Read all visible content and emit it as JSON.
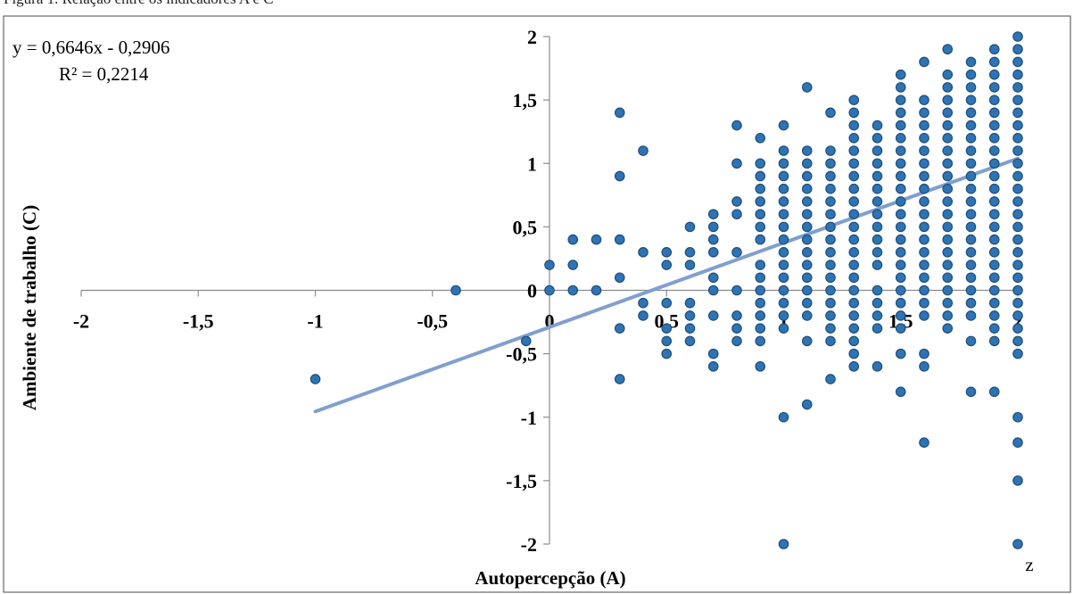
{
  "caption": "Figura 1. Relação entre os indicadores A e C",
  "chart_data": {
    "type": "scatter",
    "xlabel": "Autopercepção (A)",
    "ylabel": "Ambiente de trabalho (C)",
    "xlim": [
      -2,
      2
    ],
    "ylim": [
      -2,
      2
    ],
    "x_ticks": [
      "-2",
      "-1,5",
      "-1",
      "-0,5",
      "0",
      "0,5",
      "1",
      "1,5",
      "2"
    ],
    "y_ticks": [
      "2",
      "1,5",
      "1",
      "0,5",
      "0",
      "-0,5",
      "-1",
      "-1,5",
      "-2"
    ],
    "corner_label": "z",
    "trendline": {
      "equation": "y = 0,6646x - 0,2906",
      "r_squared": "R² = 0,2214",
      "slope": 0.6646,
      "intercept": -0.2906,
      "x_range": [
        -1,
        2
      ]
    },
    "marker_color": "#2e74b5",
    "marker_edge": "#1f4e79",
    "line_color": "#7f9fcf",
    "columns": [
      {
        "x": -1,
        "y": [
          -0.7
        ]
      },
      {
        "x": -0.4,
        "y": [
          0
        ]
      },
      {
        "x": -0.1,
        "y": [
          -0.4
        ]
      },
      {
        "x": 0,
        "y": [
          0.2,
          0
        ]
      },
      {
        "x": 0.1,
        "y": [
          0.4,
          0.2,
          0
        ]
      },
      {
        "x": 0.2,
        "y": [
          0.4,
          0
        ]
      },
      {
        "x": 0.3,
        "y": [
          1.4,
          0.9,
          0.4,
          0.1,
          -0.3,
          -0.7
        ]
      },
      {
        "x": 0.4,
        "y": [
          1.1,
          0.3,
          -0.1,
          -0.2
        ]
      },
      {
        "x": 0.5,
        "y": [
          0.3,
          0.2,
          -0.1,
          -0.3,
          -0.4,
          -0.5
        ]
      },
      {
        "x": 0.6,
        "y": [
          0.5,
          0.3,
          0.2,
          -0.1,
          -0.2,
          -0.3,
          -0.4
        ]
      },
      {
        "x": 0.7,
        "y": [
          0.6,
          0.5,
          0.4,
          0.3,
          0.1,
          0,
          -0.2,
          -0.5,
          -0.6
        ]
      },
      {
        "x": 0.8,
        "y": [
          1.3,
          1.0,
          0.7,
          0.6,
          0.3,
          0,
          -0.2,
          -0.3,
          -0.4
        ]
      },
      {
        "x": 0.9,
        "y": [
          1.2,
          1.0,
          0.9,
          0.8,
          0.7,
          0.6,
          0.5,
          0.4,
          0.2,
          0.1,
          0,
          -0.1,
          -0.2,
          -0.3,
          -0.4,
          -0.6
        ]
      },
      {
        "x": 1.0,
        "y": [
          1.3,
          1.1,
          1.0,
          0.9,
          0.8,
          0.7,
          0.6,
          0.5,
          0.4,
          0.3,
          0.2,
          0.1,
          0,
          -0.1,
          -0.2,
          -0.3,
          -1.0,
          -2.0
        ]
      },
      {
        "x": 1.1,
        "y": [
          1.6,
          1.1,
          1.0,
          0.9,
          0.8,
          0.7,
          0.6,
          0.5,
          0.4,
          0.3,
          0.2,
          0.1,
          0,
          -0.1,
          -0.2,
          -0.4,
          -0.9
        ]
      },
      {
        "x": 1.2,
        "y": [
          1.4,
          1.1,
          1.0,
          0.9,
          0.8,
          0.7,
          0.6,
          0.5,
          0.4,
          0.3,
          0.2,
          0.1,
          0,
          -0.1,
          -0.2,
          -0.3,
          -0.4,
          -0.7
        ]
      },
      {
        "x": 1.3,
        "y": [
          1.5,
          1.4,
          1.3,
          1.2,
          1.1,
          1.0,
          0.9,
          0.8,
          0.7,
          0.6,
          0.5,
          0.4,
          0.3,
          0.2,
          0.1,
          0,
          -0.1,
          -0.2,
          -0.3,
          -0.4,
          -0.5,
          -0.6
        ]
      },
      {
        "x": 1.4,
        "y": [
          1.3,
          1.2,
          1.1,
          1.0,
          0.9,
          0.8,
          0.7,
          0.6,
          0.5,
          0.4,
          0.3,
          0.2,
          0,
          -0.1,
          -0.2,
          -0.3,
          -0.6
        ]
      },
      {
        "x": 1.5,
        "y": [
          1.7,
          1.6,
          1.5,
          1.4,
          1.3,
          1.2,
          1.1,
          1.0,
          0.9,
          0.8,
          0.7,
          0.6,
          0.5,
          0.4,
          0.3,
          0.2,
          0.1,
          0,
          -0.1,
          -0.2,
          -0.3,
          -0.5,
          -0.8
        ]
      },
      {
        "x": 1.6,
        "y": [
          1.8,
          1.5,
          1.4,
          1.3,
          1.2,
          1.1,
          1.0,
          0.9,
          0.8,
          0.7,
          0.6,
          0.5,
          0.4,
          0.3,
          0.2,
          0.1,
          0,
          -0.1,
          -0.2,
          -0.5,
          -0.6,
          -1.2
        ]
      },
      {
        "x": 1.7,
        "y": [
          1.9,
          1.7,
          1.6,
          1.5,
          1.4,
          1.3,
          1.2,
          1.1,
          1.0,
          0.9,
          0.8,
          0.7,
          0.6,
          0.5,
          0.4,
          0.3,
          0.2,
          0.1,
          0,
          -0.1,
          -0.2,
          -0.3
        ]
      },
      {
        "x": 1.8,
        "y": [
          1.8,
          1.7,
          1.6,
          1.5,
          1.4,
          1.3,
          1.2,
          1.1,
          1.0,
          0.9,
          0.8,
          0.7,
          0.6,
          0.5,
          0.4,
          0.3,
          0.2,
          0.1,
          0,
          -0.1,
          -0.2,
          -0.4,
          -0.8
        ]
      },
      {
        "x": 1.9,
        "y": [
          1.9,
          1.8,
          1.7,
          1.6,
          1.5,
          1.4,
          1.3,
          1.2,
          1.1,
          1.0,
          0.9,
          0.8,
          0.7,
          0.6,
          0.5,
          0.4,
          0.3,
          0.2,
          0.1,
          0,
          -0.1,
          -0.2,
          -0.3,
          -0.4,
          -0.8
        ]
      },
      {
        "x": 2.0,
        "y": [
          2.0,
          1.9,
          1.8,
          1.7,
          1.6,
          1.5,
          1.4,
          1.3,
          1.2,
          1.1,
          1.0,
          0.9,
          0.8,
          0.7,
          0.6,
          0.5,
          0.4,
          0.3,
          0.2,
          0.1,
          0,
          -0.1,
          -0.2,
          -0.3,
          -0.4,
          -0.5,
          -1.0,
          -1.2,
          -1.5,
          -2.0
        ]
      }
    ]
  }
}
